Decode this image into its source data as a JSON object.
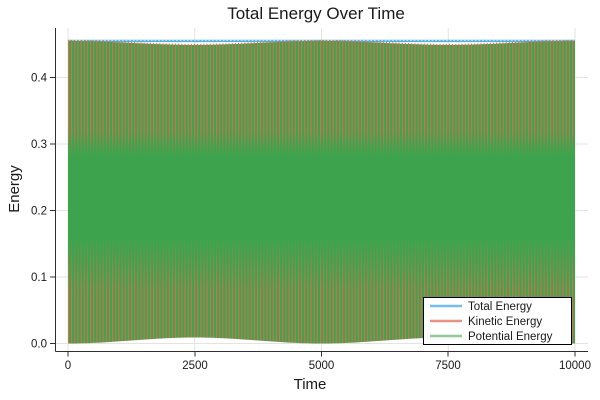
{
  "chart_data": {
    "type": "line",
    "title": "Total Energy Over Time",
    "xlabel": "Time",
    "ylabel": "Energy",
    "x_range": [
      0,
      10000
    ],
    "y_range_shown": [
      0.0,
      0.46
    ],
    "grid": true,
    "x_axis_ticks": [
      "0",
      "2500",
      "5000",
      "7500",
      "10000"
    ],
    "y_axis_ticks": [
      "0.0",
      "0.1",
      "0.2",
      "0.3",
      "0.4"
    ],
    "xtick_values": [
      0,
      2500,
      5000,
      7500,
      10000
    ],
    "ytick_values": [
      0.0,
      0.1,
      0.2,
      0.3,
      0.4
    ],
    "series": [
      {
        "name": "Total Energy",
        "color": "#57b0e3",
        "kind": "constant",
        "value": 0.455
      },
      {
        "name": "Kinetic Energy",
        "color": "#d96f50",
        "kind": "fast_oscillation",
        "min": 0.0,
        "max": 0.455,
        "beat_period": 5000,
        "envelope_peak_dip": 0.006,
        "envelope_dip_at": [
          2500,
          7500
        ],
        "envelope_full_at": [
          0,
          5000,
          10000
        ]
      },
      {
        "name": "Potential Energy",
        "color": "#3da44d",
        "kind": "fast_oscillation",
        "min": 0.0,
        "max": 0.455,
        "beat_period": 5000,
        "envelope_min_rise": 0.009,
        "envelope_dip_at": [
          2500,
          7500
        ],
        "envelope_full_at": [
          0,
          5000,
          10000
        ]
      }
    ],
    "legend": {
      "position": "bottom-right",
      "entries": [
        {
          "label": "Total Energy",
          "color": "#74bce9"
        },
        {
          "label": "Kinetic Energy",
          "color": "#e99384"
        },
        {
          "label": "Potential Energy",
          "color": "#90cb97"
        }
      ]
    },
    "colors": {
      "grid": "#e3e3e3",
      "spine": "#2f2f2f",
      "background": "#ffffff",
      "fill_dominant": "#3da44d",
      "fill_stripe": "#d96f50"
    }
  }
}
